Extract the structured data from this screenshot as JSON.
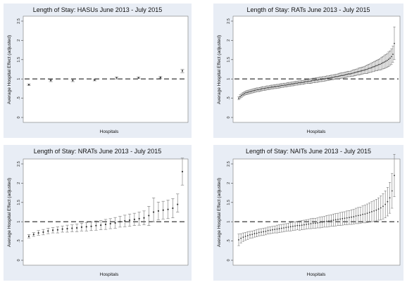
{
  "chart_data": [
    {
      "type": "scatter",
      "title": "Length of Stay: HASUs June 2013 - July 2015",
      "xlabel": "Hospitals",
      "ylabel": "Average Hospital Effect (adjusted)",
      "ylim": [
        0,
        2.5
      ],
      "yticks": [
        "0",
        ".5",
        "1",
        "1.5",
        "2",
        "2.5"
      ],
      "reference_y": 1,
      "errorbars": true,
      "x": [
        1,
        2,
        3,
        4,
        5,
        6,
        7,
        8
      ],
      "values": [
        0.85,
        0.96,
        0.96,
        0.97,
        1.03,
        1.03,
        1.04,
        1.21
      ],
      "lower": [
        0.83,
        0.93,
        0.93,
        0.95,
        1.0,
        1.01,
        1.02,
        1.16
      ],
      "upper": [
        0.87,
        0.98,
        0.99,
        0.99,
        1.05,
        1.05,
        1.06,
        1.25
      ]
    },
    {
      "type": "scatter",
      "title": "Length of Stay: RATs June 2013 - July 2015",
      "xlabel": "Hospitals",
      "ylabel": "Average Hospital Effect (adjusted)",
      "ylim": [
        0,
        2.5
      ],
      "yticks": [
        "0",
        ".5",
        "1",
        "1.5",
        "2",
        "2.5"
      ],
      "reference_y": 1,
      "errorbars": true,
      "x": [
        1,
        2,
        3,
        4,
        5,
        6,
        7,
        8,
        9,
        10,
        11,
        12,
        13,
        14,
        15,
        16,
        17,
        18,
        19,
        20,
        21,
        22,
        23,
        24,
        25,
        26,
        27,
        28,
        29,
        30,
        31,
        32,
        33,
        34,
        35,
        36,
        37,
        38,
        39,
        40,
        41,
        42,
        43,
        44,
        45,
        46,
        47,
        48,
        49,
        50,
        51,
        52,
        53,
        54,
        55,
        56,
        57,
        58,
        59,
        60,
        61,
        62,
        63,
        64,
        65,
        66,
        67,
        68,
        69,
        70,
        71,
        72,
        73,
        74,
        75,
        76,
        77,
        78,
        79,
        80,
        81,
        82,
        83,
        84,
        85,
        86,
        87,
        88,
        89,
        90,
        91,
        92,
        93,
        94,
        95,
        96,
        97,
        98,
        99,
        100,
        101,
        102,
        103,
        104,
        105,
        106,
        107,
        108,
        109,
        110
      ],
      "values": [
        0.5,
        0.54,
        0.57,
        0.6,
        0.62,
        0.64,
        0.65,
        0.66,
        0.67,
        0.68,
        0.69,
        0.7,
        0.71,
        0.72,
        0.72,
        0.73,
        0.74,
        0.75,
        0.75,
        0.76,
        0.77,
        0.77,
        0.78,
        0.79,
        0.79,
        0.8,
        0.8,
        0.81,
        0.81,
        0.82,
        0.83,
        0.83,
        0.84,
        0.84,
        0.85,
        0.86,
        0.86,
        0.87,
        0.87,
        0.88,
        0.89,
        0.89,
        0.9,
        0.9,
        0.91,
        0.91,
        0.92,
        0.93,
        0.93,
        0.94,
        0.94,
        0.95,
        0.96,
        0.96,
        0.97,
        0.97,
        0.98,
        0.99,
        0.99,
        1.0,
        1.0,
        1.01,
        1.02,
        1.02,
        1.03,
        1.04,
        1.04,
        1.05,
        1.06,
        1.06,
        1.07,
        1.08,
        1.09,
        1.09,
        1.1,
        1.11,
        1.12,
        1.13,
        1.13,
        1.14,
        1.15,
        1.16,
        1.17,
        1.18,
        1.19,
        1.2,
        1.21,
        1.22,
        1.23,
        1.24,
        1.25,
        1.27,
        1.28,
        1.29,
        1.31,
        1.32,
        1.34,
        1.35,
        1.37,
        1.38,
        1.4,
        1.42,
        1.44,
        1.46,
        1.48,
        1.51,
        1.54,
        1.58,
        1.64,
        1.92
      ],
      "lower": [
        0.46,
        0.49,
        0.52,
        0.55,
        0.57,
        0.59,
        0.6,
        0.61,
        0.62,
        0.63,
        0.64,
        0.65,
        0.66,
        0.67,
        0.67,
        0.68,
        0.69,
        0.7,
        0.7,
        0.71,
        0.72,
        0.72,
        0.73,
        0.74,
        0.74,
        0.75,
        0.75,
        0.76,
        0.76,
        0.77,
        0.78,
        0.78,
        0.79,
        0.79,
        0.8,
        0.81,
        0.81,
        0.82,
        0.82,
        0.83,
        0.84,
        0.84,
        0.85,
        0.85,
        0.86,
        0.86,
        0.87,
        0.88,
        0.88,
        0.89,
        0.88,
        0.89,
        0.9,
        0.9,
        0.91,
        0.91,
        0.92,
        0.93,
        0.93,
        0.94,
        0.94,
        0.95,
        0.96,
        0.96,
        0.97,
        0.98,
        0.98,
        0.99,
        1.0,
        1.0,
        1.0,
        1.01,
        1.02,
        1.02,
        1.03,
        1.04,
        1.05,
        1.06,
        1.06,
        1.07,
        1.07,
        1.08,
        1.09,
        1.1,
        1.1,
        1.11,
        1.12,
        1.13,
        1.14,
        1.14,
        1.14,
        1.16,
        1.17,
        1.17,
        1.19,
        1.19,
        1.21,
        1.21,
        1.23,
        1.23,
        1.24,
        1.26,
        1.27,
        1.29,
        1.3,
        1.32,
        1.35,
        1.38,
        1.43,
        1.5
      ],
      "upper": [
        0.54,
        0.59,
        0.62,
        0.65,
        0.67,
        0.69,
        0.7,
        0.71,
        0.72,
        0.73,
        0.74,
        0.75,
        0.76,
        0.77,
        0.77,
        0.78,
        0.79,
        0.8,
        0.8,
        0.81,
        0.82,
        0.82,
        0.83,
        0.84,
        0.84,
        0.85,
        0.85,
        0.86,
        0.86,
        0.87,
        0.88,
        0.88,
        0.89,
        0.89,
        0.9,
        0.91,
        0.91,
        0.92,
        0.92,
        0.93,
        0.94,
        0.94,
        0.95,
        0.95,
        0.96,
        0.96,
        0.97,
        0.98,
        0.98,
        0.99,
        1.0,
        1.01,
        1.02,
        1.02,
        1.03,
        1.03,
        1.04,
        1.05,
        1.05,
        1.06,
        1.06,
        1.07,
        1.08,
        1.08,
        1.09,
        1.1,
        1.1,
        1.11,
        1.12,
        1.12,
        1.14,
        1.15,
        1.16,
        1.16,
        1.17,
        1.18,
        1.19,
        1.2,
        1.2,
        1.21,
        1.23,
        1.24,
        1.25,
        1.26,
        1.28,
        1.29,
        1.3,
        1.31,
        1.32,
        1.34,
        1.36,
        1.38,
        1.39,
        1.41,
        1.43,
        1.45,
        1.47,
        1.49,
        1.51,
        1.53,
        1.56,
        1.58,
        1.61,
        1.63,
        1.66,
        1.7,
        1.73,
        1.78,
        1.85,
        2.35
      ]
    },
    {
      "type": "scatter",
      "title": "Length of Stay: NRATs June 2013 - July 2015",
      "xlabel": "Hospitals",
      "ylabel": "Average Hospital Effect (adjusted)",
      "ylim": [
        0,
        2.5
      ],
      "yticks": [
        "0",
        ".5",
        "1",
        "1.5",
        "2",
        "2.5"
      ],
      "reference_y": 1,
      "errorbars": true,
      "x": [
        1,
        2,
        3,
        4,
        5,
        6,
        7,
        8,
        9,
        10,
        11,
        12,
        13,
        14,
        15,
        16,
        17,
        18,
        19,
        20,
        21,
        22,
        23,
        24,
        25,
        26,
        27,
        28,
        29,
        30,
        31,
        32,
        33
      ],
      "values": [
        0.62,
        0.67,
        0.71,
        0.73,
        0.76,
        0.78,
        0.79,
        0.81,
        0.82,
        0.83,
        0.84,
        0.86,
        0.87,
        0.88,
        0.9,
        0.91,
        0.93,
        0.95,
        0.97,
        1.0,
        1.02,
        1.04,
        1.06,
        1.08,
        1.1,
        1.16,
        1.25,
        1.28,
        1.3,
        1.32,
        1.35,
        1.45,
        2.3
      ],
      "lower": [
        0.58,
        0.62,
        0.65,
        0.66,
        0.69,
        0.71,
        0.71,
        0.73,
        0.73,
        0.74,
        0.74,
        0.76,
        0.76,
        0.77,
        0.78,
        0.79,
        0.8,
        0.82,
        0.83,
        0.86,
        0.87,
        0.88,
        0.9,
        0.91,
        0.92,
        0.9,
        1.0,
        1.05,
        1.07,
        1.08,
        1.1,
        1.25,
        1.95
      ],
      "upper": [
        0.67,
        0.72,
        0.77,
        0.8,
        0.83,
        0.85,
        0.87,
        0.89,
        0.91,
        0.92,
        0.94,
        0.96,
        0.98,
        0.99,
        1.02,
        1.03,
        1.06,
        1.08,
        1.11,
        1.14,
        1.17,
        1.2,
        1.22,
        1.25,
        1.28,
        1.4,
        1.62,
        1.51,
        1.53,
        1.56,
        1.6,
        1.72,
        2.65
      ]
    },
    {
      "type": "scatter",
      "title": "Length of Stay: NAITs June 2013 - July 2015",
      "xlabel": "Hospitals",
      "ylabel": "Average Hospital Effect (adjusted)",
      "ylim": [
        0,
        2.5
      ],
      "yticks": [
        "0",
        ".5",
        "1",
        "1.5",
        "2",
        "2.5"
      ],
      "reference_y": 1,
      "errorbars": true,
      "x": [
        1,
        2,
        3,
        4,
        5,
        6,
        7,
        8,
        9,
        10,
        11,
        12,
        13,
        14,
        15,
        16,
        17,
        18,
        19,
        20,
        21,
        22,
        23,
        24,
        25,
        26,
        27,
        28,
        29,
        30,
        31,
        32,
        33,
        34,
        35,
        36,
        37,
        38,
        39,
        40,
        41,
        42,
        43,
        44,
        45,
        46,
        47,
        48,
        49,
        50,
        51,
        52,
        53,
        54,
        55,
        56,
        57,
        58,
        59,
        60,
        61,
        62,
        63,
        64,
        65,
        66,
        67,
        68,
        69,
        70
      ],
      "values": [
        0.53,
        0.57,
        0.6,
        0.62,
        0.64,
        0.66,
        0.67,
        0.69,
        0.7,
        0.72,
        0.73,
        0.74,
        0.75,
        0.77,
        0.78,
        0.79,
        0.8,
        0.81,
        0.82,
        0.83,
        0.84,
        0.85,
        0.86,
        0.87,
        0.88,
        0.89,
        0.9,
        0.9,
        0.91,
        0.92,
        0.93,
        0.94,
        0.95,
        0.96,
        0.96,
        0.97,
        0.98,
        0.99,
        1.0,
        1.01,
        1.02,
        1.03,
        1.04,
        1.05,
        1.06,
        1.07,
        1.08,
        1.09,
        1.1,
        1.11,
        1.12,
        1.13,
        1.15,
        1.16,
        1.17,
        1.19,
        1.2,
        1.22,
        1.24,
        1.26,
        1.28,
        1.3,
        1.33,
        1.36,
        1.4,
        1.45,
        1.52,
        1.62,
        1.8,
        2.2
      ],
      "lower": [
        0.38,
        0.45,
        0.49,
        0.52,
        0.54,
        0.57,
        0.58,
        0.6,
        0.61,
        0.63,
        0.64,
        0.65,
        0.66,
        0.68,
        0.69,
        0.7,
        0.71,
        0.71,
        0.72,
        0.73,
        0.74,
        0.75,
        0.76,
        0.76,
        0.77,
        0.78,
        0.79,
        0.78,
        0.79,
        0.8,
        0.81,
        0.82,
        0.82,
        0.83,
        0.83,
        0.84,
        0.84,
        0.85,
        0.86,
        0.86,
        0.87,
        0.88,
        0.88,
        0.89,
        0.9,
        0.9,
        0.91,
        0.92,
        0.92,
        0.93,
        0.93,
        0.94,
        0.95,
        0.95,
        0.96,
        0.97,
        0.97,
        0.98,
        0.99,
        1.0,
        1.01,
        1.02,
        1.04,
        1.05,
        1.07,
        1.1,
        1.15,
        1.22,
        1.35,
        1.65
      ],
      "upper": [
        0.68,
        0.69,
        0.71,
        0.72,
        0.74,
        0.75,
        0.76,
        0.78,
        0.79,
        0.81,
        0.82,
        0.83,
        0.84,
        0.86,
        0.87,
        0.88,
        0.89,
        0.91,
        0.92,
        0.93,
        0.94,
        0.95,
        0.96,
        0.98,
        0.99,
        1.0,
        1.01,
        1.02,
        1.03,
        1.04,
        1.05,
        1.06,
        1.08,
        1.09,
        1.09,
        1.1,
        1.12,
        1.13,
        1.14,
        1.16,
        1.17,
        1.18,
        1.2,
        1.21,
        1.22,
        1.24,
        1.25,
        1.26,
        1.28,
        1.29,
        1.31,
        1.32,
        1.35,
        1.37,
        1.38,
        1.41,
        1.43,
        1.46,
        1.49,
        1.52,
        1.55,
        1.58,
        1.62,
        1.67,
        1.73,
        1.8,
        1.89,
        2.02,
        2.25,
        2.75
      ]
    }
  ]
}
